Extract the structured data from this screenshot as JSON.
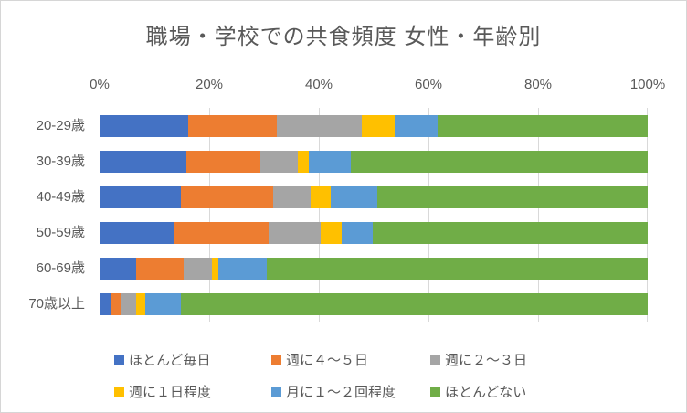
{
  "window": {
    "background": "#ffffff",
    "border_color": "#d6d6d6",
    "text_color": "#595959"
  },
  "chart_data": {
    "type": "bar",
    "stacked": true,
    "orientation": "horizontal",
    "title": "職場・学校での共食頻度 女性・年齢別",
    "title_color": "#595959",
    "categories": [
      "20-29歳",
      "30-39歳",
      "40-49歳",
      "50-59歳",
      "60-69歳",
      "70歳以上"
    ],
    "series": [
      {
        "name": "ほとんど毎日",
        "color": "#4472C4",
        "values": [
          16.2,
          15.9,
          14.9,
          13.7,
          6.6,
          2.2
        ]
      },
      {
        "name": "週に４～５日",
        "color": "#ED7D31",
        "values": [
          16.2,
          13.4,
          16.7,
          17.1,
          8.7,
          1.7
        ]
      },
      {
        "name": "週に２～３日",
        "color": "#A5A5A5",
        "values": [
          15.5,
          6.9,
          6.9,
          9.6,
          5.2,
          2.8
        ]
      },
      {
        "name": "週に１日程度",
        "color": "#FFC000",
        "values": [
          6.0,
          1.9,
          3.6,
          3.7,
          1.1,
          1.7
        ]
      },
      {
        "name": "月に１～２回程度",
        "color": "#5B9BD5",
        "values": [
          7.8,
          7.8,
          8.5,
          5.8,
          8.9,
          6.5
        ]
      },
      {
        "name": "ほとんどない",
        "color": "#70AD47",
        "values": [
          38.3,
          54.1,
          49.4,
          50.1,
          69.5,
          85.1
        ]
      }
    ],
    "x_axis": {
      "min": 0,
      "max": 100,
      "unit": "%",
      "tick_labels": [
        "0%",
        "20%",
        "40%",
        "60%",
        "80%",
        "100%"
      ],
      "gridlines": true,
      "gridline_color": "#d9d9d9",
      "label_color": "#595959"
    },
    "legend": {
      "position": "bottom",
      "rows": 2,
      "columns": 3
    }
  }
}
